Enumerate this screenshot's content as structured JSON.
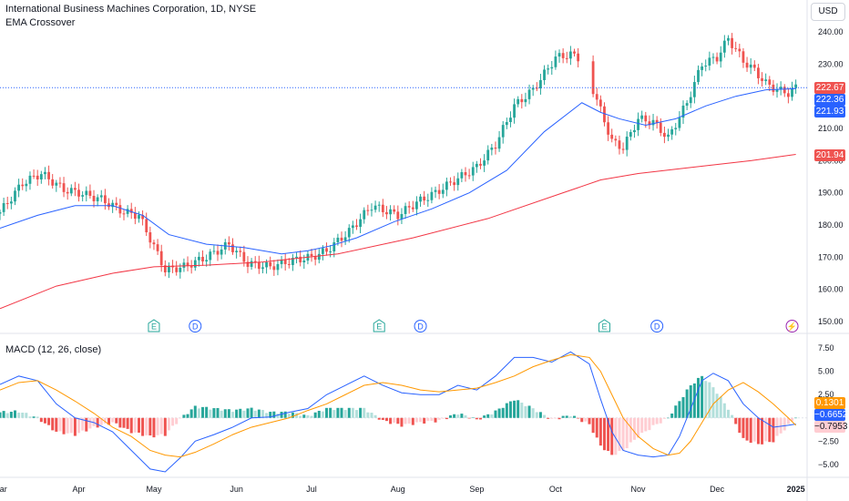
{
  "header": {
    "title": "International Business Machines Corporation, 1D, NYSE",
    "indicator": "EMA Crossover",
    "currency_button": "USD"
  },
  "macd_panel": {
    "title": "MACD (12, 26, close)"
  },
  "price_tags": {
    "last": "222.67",
    "ema_fast": "222.36",
    "ema_mid": "221.93",
    "ema_slow": "201.94",
    "hist": "0.1301",
    "macd": "−0.6652",
    "signal": "−0.7953"
  },
  "colors": {
    "up": "#26a69a",
    "down": "#ef5350",
    "ema_fast": "#2962ff",
    "ema_slow": "#f23645",
    "macd_line": "#2962ff",
    "signal_line": "#ff9800",
    "hist_up": "#26a69a",
    "hist_up_light": "#b2dfdb",
    "hist_down": "#ef5350",
    "hist_down_light": "#ffcdd2"
  },
  "chart_data": [
    {
      "type": "line",
      "panel": "price",
      "x_ticks": [
        "Mar",
        "Apr",
        "May",
        "Jun",
        "Jul",
        "Aug",
        "Sep",
        "Oct",
        "Nov",
        "Dec",
        "2025"
      ],
      "y_ticks": [
        "240.00",
        "230.00",
        "220.00",
        "210.00",
        "200.00",
        "190.00",
        "180.00",
        "170.00",
        "160.00",
        "150.00"
      ],
      "ylim": [
        148,
        242
      ],
      "x_ticks_pos": [
        0,
        21,
        41,
        63,
        83,
        106,
        127,
        148,
        170,
        191,
        212
      ],
      "series": [
        {
          "name": "close",
          "x": [
            0,
            6,
            11,
            17,
            21,
            27,
            33,
            37,
            44,
            49,
            55,
            61,
            66,
            72,
            78,
            83,
            87,
            93,
            99,
            106,
            111,
            116,
            120,
            127,
            132,
            137,
            142,
            148,
            152,
            154,
            158,
            163,
            166,
            170,
            174,
            178,
            183,
            187,
            191,
            194,
            198,
            201,
            204,
            207,
            210,
            212
          ],
          "values": [
            184,
            193,
            196,
            191,
            190,
            188,
            184,
            183,
            166,
            167,
            170,
            174,
            168,
            167,
            169,
            170,
            172,
            178,
            186,
            183,
            187,
            190,
            193,
            198,
            205,
            217,
            222,
            232,
            233,
            232,
            222,
            206,
            204,
            213,
            212,
            207,
            218,
            230,
            232,
            238,
            231,
            228,
            224,
            222,
            221,
            222.67
          ]
        },
        {
          "name": "EMA fast",
          "x": [
            0,
            10,
            20,
            30,
            38,
            45,
            55,
            65,
            75,
            82,
            88,
            95,
            105,
            115,
            125,
            135,
            145,
            155,
            160,
            165,
            172,
            180,
            188,
            196,
            204,
            212
          ],
          "values": [
            179,
            183,
            186,
            186,
            183,
            177,
            174,
            173,
            171,
            172,
            173.5,
            176,
            181,
            185,
            190,
            197,
            209,
            218,
            215,
            213,
            211,
            213,
            217,
            220,
            222,
            222.36
          ]
        },
        {
          "name": "EMA slow",
          "x": [
            0,
            15,
            30,
            41,
            55,
            70,
            90,
            110,
            130,
            150,
            160,
            170,
            185,
            200,
            212
          ],
          "values": [
            154,
            161,
            165,
            167,
            167.5,
            168.5,
            171,
            176,
            182,
            190,
            194,
            196,
            198,
            200,
            201.94
          ]
        }
      ]
    },
    {
      "type": "line",
      "panel": "macd",
      "y_ticks": [
        "7.50",
        "5.00",
        "2.50",
        "−2.50",
        "−5.00"
      ],
      "ylim": [
        -6,
        8.5
      ],
      "series": [
        {
          "name": "MACD",
          "x": [
            0,
            5,
            10,
            15,
            20,
            25,
            30,
            35,
            40,
            44,
            48,
            52,
            57,
            62,
            67,
            72,
            77,
            82,
            87,
            92,
            97,
            102,
            107,
            112,
            117,
            122,
            127,
            132,
            137,
            142,
            147,
            152,
            157,
            160,
            163,
            166,
            170,
            174,
            178,
            181,
            184,
            187,
            190,
            194,
            198,
            202,
            206,
            210,
            212
          ],
          "values": [
            3.6,
            4.5,
            4.0,
            1.5,
            0.0,
            -0.5,
            -1.5,
            -3.5,
            -5.5,
            -5.8,
            -4.3,
            -2.5,
            -1.8,
            -1.0,
            0.0,
            0.1,
            0.6,
            1.0,
            2.5,
            3.5,
            4.5,
            3.5,
            2.7,
            2.5,
            2.5,
            3.5,
            3.0,
            4.5,
            6.5,
            6.5,
            6.0,
            7.1,
            5.8,
            2.0,
            -1.5,
            -3.5,
            -4.0,
            -4.2,
            -4.0,
            -2.0,
            1.0,
            4.0,
            4.8,
            4.0,
            1.5,
            0.0,
            -1.0,
            -0.8,
            -0.6652
          ]
        },
        {
          "name": "Signal",
          "x": [
            0,
            5,
            10,
            15,
            20,
            25,
            30,
            35,
            40,
            44,
            48,
            52,
            57,
            62,
            67,
            72,
            77,
            82,
            87,
            92,
            97,
            102,
            107,
            112,
            117,
            122,
            127,
            132,
            137,
            142,
            147,
            152,
            157,
            160,
            163,
            166,
            170,
            174,
            178,
            181,
            184,
            187,
            190,
            194,
            198,
            202,
            206,
            210,
            212
          ],
          "values": [
            3.0,
            3.8,
            4.0,
            3.0,
            1.8,
            0.5,
            -1.0,
            -2.0,
            -3.5,
            -4.0,
            -4.2,
            -3.7,
            -2.8,
            -1.8,
            -1.0,
            -0.5,
            0.0,
            0.8,
            1.5,
            2.5,
            3.5,
            3.8,
            3.5,
            3.0,
            2.8,
            3.0,
            3.2,
            3.8,
            4.5,
            5.5,
            6.2,
            6.8,
            6.5,
            5.0,
            2.5,
            0.0,
            -2.0,
            -3.3,
            -4.0,
            -3.8,
            -2.5,
            -0.5,
            1.5,
            3.0,
            3.8,
            2.8,
            1.5,
            0.0,
            -0.7953
          ]
        },
        {
          "name": "Histogram",
          "x": [
            0,
            5,
            10,
            15,
            20,
            25,
            30,
            35,
            40,
            44,
            48,
            52,
            57,
            62,
            67,
            72,
            77,
            82,
            87,
            92,
            97,
            102,
            107,
            112,
            117,
            122,
            127,
            132,
            137,
            142,
            147,
            152,
            157,
            160,
            163,
            166,
            170,
            174,
            178,
            181,
            184,
            187,
            190,
            194,
            198,
            202,
            206,
            210,
            212
          ],
          "values": [
            0.6,
            0.7,
            0.0,
            -1.5,
            -1.8,
            -1.0,
            -0.5,
            -1.5,
            -2.0,
            -1.8,
            -0.1,
            1.2,
            1.0,
            0.8,
            1.0,
            0.6,
            0.6,
            0.2,
            1.0,
            1.0,
            1.0,
            -0.3,
            -0.8,
            -0.5,
            -0.3,
            0.5,
            -0.2,
            0.7,
            2.0,
            1.0,
            -0.2,
            0.3,
            -0.7,
            -3.0,
            -4.0,
            -3.5,
            -2.0,
            -0.9,
            0.0,
            1.8,
            3.5,
            4.5,
            3.3,
            1.0,
            -2.3,
            -2.8,
            -2.5,
            -0.8,
            0.1301
          ]
        }
      ]
    }
  ]
}
